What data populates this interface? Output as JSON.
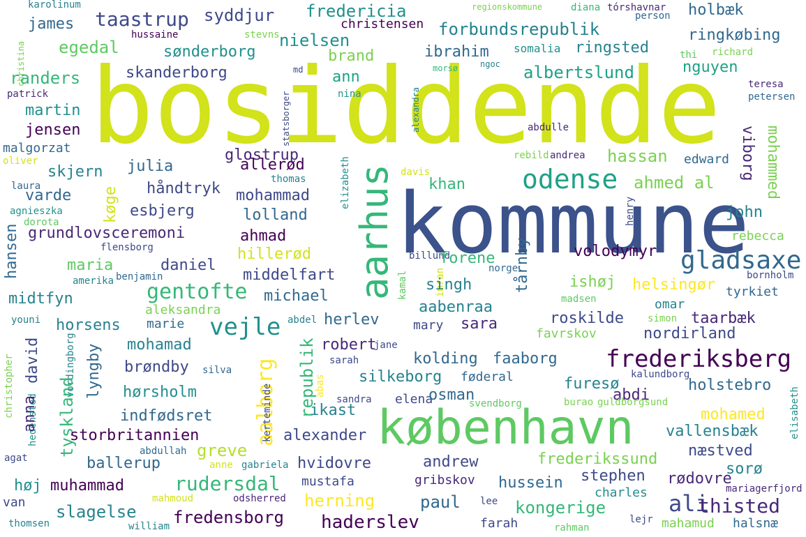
{
  "words": [
    {
      "t": "bosiddende",
      "c": "#d2e21b"
    },
    {
      "t": "kommune",
      "c": "#3b528b"
    },
    {
      "t": "københavn",
      "c": "#5ec962"
    },
    {
      "t": "aarhus",
      "c": "#35b779"
    },
    {
      "t": "gladsaxe",
      "c": "#31688e"
    },
    {
      "t": "frederiksberg",
      "c": "#440154"
    },
    {
      "t": "odense",
      "c": "#1fa187"
    },
    {
      "t": "vejle",
      "c": "#21908d"
    },
    {
      "t": "gentofte",
      "c": "#35b779"
    },
    {
      "t": "ali",
      "c": "#3e4989"
    },
    {
      "t": "thisted",
      "c": "#482878"
    },
    {
      "t": "aalborg",
      "c": "#fde725"
    },
    {
      "t": "taastrup",
      "c": "#3e4989"
    },
    {
      "t": "syddjur",
      "c": "#3e4989"
    },
    {
      "t": "fredericia",
      "c": "#21908d"
    },
    {
      "t": "forbundsrepublik",
      "c": "#26828e"
    },
    {
      "t": "holbæk",
      "c": "#31688e"
    },
    {
      "t": "ringkøbing",
      "c": "#31688e"
    },
    {
      "t": "karolinum",
      "c": "#26828e"
    },
    {
      "t": "regionskommune",
      "c": "#7ad151"
    },
    {
      "t": "diana",
      "c": "#35b779"
    },
    {
      "t": "tórshavnar",
      "c": "#482878"
    },
    {
      "t": "person",
      "c": "#31688e"
    },
    {
      "t": "christina",
      "c": "#7ad151"
    },
    {
      "t": "james",
      "c": "#31688e"
    },
    {
      "t": "hussaine",
      "c": "#440154"
    },
    {
      "t": "stevns",
      "c": "#7ad151"
    },
    {
      "t": "christensen",
      "c": "#440154"
    },
    {
      "t": "egedal",
      "c": "#5ec962"
    },
    {
      "t": "sønderborg",
      "c": "#21908d"
    },
    {
      "t": "nielsen",
      "c": "#21908d"
    },
    {
      "t": "brand",
      "c": "#7ad151"
    },
    {
      "t": "ibrahim",
      "c": "#31688e"
    },
    {
      "t": "somalia",
      "c": "#21908d"
    },
    {
      "t": "ringsted",
      "c": "#26828e"
    },
    {
      "t": "thi",
      "c": "#5ec962"
    },
    {
      "t": "richard",
      "c": "#7ad151"
    },
    {
      "t": "randers",
      "c": "#35b779"
    },
    {
      "t": "skanderborg",
      "c": "#3e4989"
    },
    {
      "t": "md",
      "c": "#3e4989"
    },
    {
      "t": "ann",
      "c": "#1fa187"
    },
    {
      "t": "morsø",
      "c": "#35b779"
    },
    {
      "t": "ngoc",
      "c": "#26828e"
    },
    {
      "t": "albertslund",
      "c": "#1fa187"
    },
    {
      "t": "nguyen",
      "c": "#1fa187"
    },
    {
      "t": "patrick",
      "c": "#482878"
    },
    {
      "t": "statsborger",
      "c": "#3e4989"
    },
    {
      "t": "nina",
      "c": "#21908d"
    },
    {
      "t": "alexandra",
      "c": "#26828e"
    },
    {
      "t": "teresa",
      "c": "#482878"
    },
    {
      "t": "petersen",
      "c": "#31688e"
    },
    {
      "t": "martin",
      "c": "#21908d"
    },
    {
      "t": "jensen",
      "c": "#440154"
    },
    {
      "t": "malgorzat",
      "c": "#31688e"
    },
    {
      "t": "abdulle",
      "c": "#482878"
    },
    {
      "t": "mohammed",
      "c": "#7ad151"
    },
    {
      "t": "viborg",
      "c": "#482878"
    },
    {
      "t": "oliver",
      "c": "#d2e21b"
    },
    {
      "t": "allerød",
      "c": "#440154"
    },
    {
      "t": "glostrup",
      "c": "#482878"
    },
    {
      "t": "rebild",
      "c": "#7ad151"
    },
    {
      "t": "andrea",
      "c": "#482878"
    },
    {
      "t": "hassan",
      "c": "#7ad151"
    },
    {
      "t": "edward",
      "c": "#31688e"
    },
    {
      "t": "skjern",
      "c": "#26828e"
    },
    {
      "t": "julia",
      "c": "#31688e"
    },
    {
      "t": "elizabeth",
      "c": "#21908d"
    },
    {
      "t": "khan",
      "c": "#35b779"
    },
    {
      "t": "laura",
      "c": "#31688e"
    },
    {
      "t": "thomas",
      "c": "#26828e"
    },
    {
      "t": "davis",
      "c": "#d2e21b"
    },
    {
      "t": "varde",
      "c": "#31688e"
    },
    {
      "t": "køge",
      "c": "#d2e21b"
    },
    {
      "t": "håndtryk",
      "c": "#3e4989"
    },
    {
      "t": "mohammad",
      "c": "#3e4989"
    },
    {
      "t": "ahmed al",
      "c": "#7ad151"
    },
    {
      "t": "agnieszka",
      "c": "#21908d"
    },
    {
      "t": "esbjerg",
      "c": "#3e4989"
    },
    {
      "t": "lolland",
      "c": "#31688e"
    },
    {
      "t": "dorota",
      "c": "#5ec962"
    },
    {
      "t": "henry",
      "c": "#3e4989"
    },
    {
      "t": "john",
      "c": "#26828e"
    },
    {
      "t": "hansen",
      "c": "#31688e"
    },
    {
      "t": "grundlovsceremoni",
      "c": "#482878"
    },
    {
      "t": "ahmad",
      "c": "#440154"
    },
    {
      "t": "rebecca",
      "c": "#7ad151"
    },
    {
      "t": "flensborg",
      "c": "#3e4989"
    },
    {
      "t": "hillerød",
      "c": "#d2e21b"
    },
    {
      "t": "volodymyr",
      "c": "#440154"
    },
    {
      "t": "billund",
      "c": "#3e4989"
    },
    {
      "t": "maria",
      "c": "#5ec962"
    },
    {
      "t": "daniel",
      "c": "#3e4989"
    },
    {
      "t": "forene",
      "c": "#35b779"
    },
    {
      "t": "kamal",
      "c": "#5ec962"
    },
    {
      "t": "imran",
      "c": "#d2e21b"
    },
    {
      "t": "norge",
      "c": "#31688e"
    },
    {
      "t": "amerika",
      "c": "#26828e"
    },
    {
      "t": "benjamin",
      "c": "#31688e"
    },
    {
      "t": "middelfart",
      "c": "#3e4989"
    },
    {
      "t": "tårnby",
      "c": "#31688e"
    },
    {
      "t": "ishøj",
      "c": "#7ad151"
    },
    {
      "t": "bornholm",
      "c": "#3e4989"
    },
    {
      "t": "singh",
      "c": "#26828e"
    },
    {
      "t": "helsingør",
      "c": "#fde725"
    },
    {
      "t": "tyrkiet",
      "c": "#31688e"
    },
    {
      "t": "midtfyn",
      "c": "#26828e"
    },
    {
      "t": "aleksandra",
      "c": "#7ad151"
    },
    {
      "t": "michael",
      "c": "#31688e"
    },
    {
      "t": "aabenraa",
      "c": "#26828e"
    },
    {
      "t": "madsen",
      "c": "#5ec962"
    },
    {
      "t": "omar",
      "c": "#26828e"
    },
    {
      "t": "youni",
      "c": "#26828e"
    },
    {
      "t": "horsens",
      "c": "#26828e"
    },
    {
      "t": "marie",
      "c": "#31688e"
    },
    {
      "t": "abdel",
      "c": "#26828e"
    },
    {
      "t": "herlev",
      "c": "#31688e"
    },
    {
      "t": "sara",
      "c": "#482878"
    },
    {
      "t": "mary",
      "c": "#3e4989"
    },
    {
      "t": "roskilde",
      "c": "#3e4989"
    },
    {
      "t": "simon",
      "c": "#7ad151"
    },
    {
      "t": "taarbæk",
      "c": "#482878"
    },
    {
      "t": "david",
      "c": "#3e4989"
    },
    {
      "t": "lyngby",
      "c": "#31688e"
    },
    {
      "t": "mohamad",
      "c": "#26828e"
    },
    {
      "t": "robert",
      "c": "#482878"
    },
    {
      "t": "jane",
      "c": "#3e4989"
    },
    {
      "t": "favrskov",
      "c": "#7ad151"
    },
    {
      "t": "nordirland",
      "c": "#3e4989"
    },
    {
      "t": "christopher",
      "c": "#7ad151"
    },
    {
      "t": "vordingborg",
      "c": "#26828e"
    },
    {
      "t": "brøndby",
      "c": "#3e4989"
    },
    {
      "t": "silva",
      "c": "#31688e"
    },
    {
      "t": "republik",
      "c": "#35b779"
    },
    {
      "t": "sarah",
      "c": "#3e4989"
    },
    {
      "t": "kolding",
      "c": "#31688e"
    },
    {
      "t": "faaborg",
      "c": "#31688e"
    },
    {
      "t": "hedensted",
      "c": "#21908d"
    },
    {
      "t": "kerteminde",
      "c": "#3e4989"
    },
    {
      "t": "silkeborg",
      "c": "#26828e"
    },
    {
      "t": "føderal",
      "c": "#31688e"
    },
    {
      "t": "abas",
      "c": "#fde725"
    },
    {
      "t": "hørsholm",
      "c": "#21908d"
    },
    {
      "t": "furesø",
      "c": "#26828e"
    },
    {
      "t": "abdi",
      "c": "#482878"
    },
    {
      "t": "kalundborg",
      "c": "#3e4989"
    },
    {
      "t": "holstebro",
      "c": "#31688e"
    },
    {
      "t": "sandra",
      "c": "#3e4989"
    },
    {
      "t": "elena",
      "c": "#3e4989"
    },
    {
      "t": "osman",
      "c": "#31688e"
    },
    {
      "t": "burao",
      "c": "#7ad151"
    },
    {
      "t": "guldborgsund",
      "c": "#7ad151"
    },
    {
      "t": "svendborg",
      "c": "#5ec962"
    },
    {
      "t": "anna",
      "c": "#482878"
    },
    {
      "t": "tyskland",
      "c": "#35b779"
    },
    {
      "t": "indfødsret",
      "c": "#31688e"
    },
    {
      "t": "ikast",
      "c": "#26828e"
    },
    {
      "t": "mohamed",
      "c": "#fde725"
    },
    {
      "t": "storbritannien",
      "c": "#440154"
    },
    {
      "t": "alexander",
      "c": "#3e4989"
    },
    {
      "t": "vallensbæk",
      "c": "#26828e"
    },
    {
      "t": "abdullah",
      "c": "#31688e"
    },
    {
      "t": "greve",
      "c": "#b5de2b"
    },
    {
      "t": "frederikssund",
      "c": "#7ad151"
    },
    {
      "t": "næstved",
      "c": "#3e4989"
    },
    {
      "t": "ballerup",
      "c": "#31688e"
    },
    {
      "t": "agat",
      "c": "#3e4989"
    },
    {
      "t": "anne",
      "c": "#d2e21b"
    },
    {
      "t": "gabriela",
      "c": "#26828e"
    },
    {
      "t": "hvidovre",
      "c": "#3e4989"
    },
    {
      "t": "andrew",
      "c": "#3e4989"
    },
    {
      "t": "elisabeth",
      "c": "#21908d"
    },
    {
      "t": "høj",
      "c": "#21908d"
    },
    {
      "t": "muhammad",
      "c": "#440154"
    },
    {
      "t": "rudersdal",
      "c": "#35b779"
    },
    {
      "t": "mustafa",
      "c": "#3e4989"
    },
    {
      "t": "gribskov",
      "c": "#482878"
    },
    {
      "t": "hussein",
      "c": "#31688e"
    },
    {
      "t": "stephen",
      "c": "#3e4989"
    },
    {
      "t": "rødovre",
      "c": "#482878"
    },
    {
      "t": "sorø",
      "c": "#26828e"
    },
    {
      "t": "mariagerfjord",
      "c": "#482878"
    },
    {
      "t": "van",
      "c": "#3e4989"
    },
    {
      "t": "mahmoud",
      "c": "#d2e21b"
    },
    {
      "t": "odsherred",
      "c": "#482878"
    },
    {
      "t": "herning",
      "c": "#fde725"
    },
    {
      "t": "paul",
      "c": "#31688e"
    },
    {
      "t": "lee",
      "c": "#3e4989"
    },
    {
      "t": "kongerige",
      "c": "#35b779"
    },
    {
      "t": "charles",
      "c": "#21908d"
    },
    {
      "t": "slagelse",
      "c": "#26828e"
    },
    {
      "t": "fredensborg",
      "c": "#440154"
    },
    {
      "t": "haderslev",
      "c": "#440154"
    },
    {
      "t": "thomsen",
      "c": "#26828e"
    },
    {
      "t": "william",
      "c": "#26828e"
    },
    {
      "t": "farah",
      "c": "#3e4989"
    },
    {
      "t": "rahman",
      "c": "#5ec962"
    },
    {
      "t": "lejr",
      "c": "#3e4989"
    },
    {
      "t": "mahamud",
      "c": "#7ad151"
    },
    {
      "t": "halsnæ",
      "c": "#31688e"
    }
  ]
}
